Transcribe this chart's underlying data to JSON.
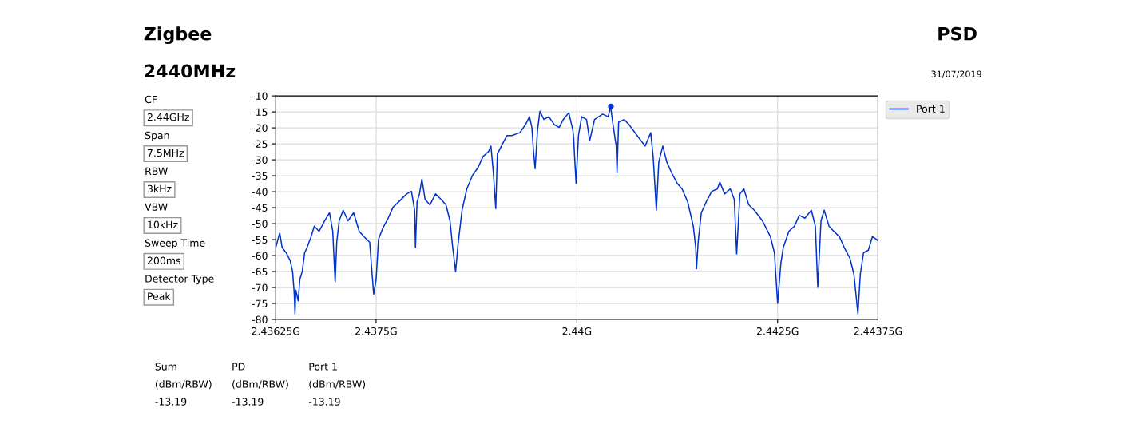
{
  "chart_data": {
    "type": "line",
    "title": "Zigbee",
    "subtitle": "2440MHz",
    "annotations": [
      "PSD",
      "31/07/2019",
      "CF",
      "2.44GHz",
      "Span",
      "7.5MHz",
      "RBW",
      "3kHz",
      "VBW",
      "10kHz",
      "Sweep Time",
      "200ms",
      "Detector Type",
      "Peak",
      "Sum",
      "PD",
      "Port 1",
      "(dBm/RBW)",
      "(dBm/RBW)",
      "(dBm/RBW)",
      "-13.19",
      "-13.19",
      "-13.19"
    ],
    "xlim": [
      2.43625,
      2.44375
    ],
    "xticks": [
      {
        "value": 2.43625,
        "label": "2.43625G"
      },
      {
        "value": 2.4375,
        "label": "2.4375G"
      },
      {
        "value": 2.44,
        "label": "2.44G"
      },
      {
        "value": 2.4425,
        "label": "2.4425G"
      },
      {
        "value": 2.44375,
        "label": "2.44375G"
      }
    ],
    "ylim": [
      -80,
      -10
    ],
    "yticks": [
      -10,
      -15,
      -20,
      -25,
      -30,
      -35,
      -40,
      -45,
      -50,
      -55,
      -60,
      -65,
      -70,
      -75,
      -80
    ],
    "grid": true,
    "legend": "top right",
    "series": [
      {
        "name": "Port 1",
        "color": "#0033cc",
        "marker": "none",
        "x": [
          2.43625,
          2.4363,
          2.43633,
          2.43638,
          2.43643,
          2.43646,
          2.43648,
          2.43649,
          2.4365,
          2.43653,
          2.43655,
          2.43658,
          2.43661,
          2.43664,
          2.43669,
          2.43673,
          2.43679,
          2.43686,
          2.43692,
          2.43696,
          2.43699,
          2.43701,
          2.43704,
          2.43709,
          2.43715,
          2.43722,
          2.43729,
          2.43735,
          2.43742,
          2.43745,
          2.43747,
          2.4375,
          2.43753,
          2.43758,
          2.43765,
          2.43771,
          2.43778,
          2.43788,
          2.43794,
          2.43798,
          2.43799,
          2.43801,
          2.43804,
          2.43807,
          2.43811,
          2.43817,
          2.43824,
          2.43831,
          2.43837,
          2.43842,
          2.43845,
          2.43849,
          2.43852,
          2.43857,
          2.43863,
          2.4387,
          2.43877,
          2.43883,
          2.4389,
          2.43893,
          2.43896,
          2.43899,
          2.43901,
          2.43906,
          2.43913,
          2.43919,
          2.43929,
          2.43936,
          2.43941,
          2.43944,
          2.43946,
          2.43948,
          2.43951,
          2.43954,
          2.43959,
          2.43965,
          2.43972,
          2.43978,
          2.43983,
          2.4399,
          2.43995,
          2.43996,
          2.43997,
          2.43999,
          2.44002,
          2.44006,
          2.44012,
          2.44016,
          2.44022,
          2.44032,
          2.44039,
          2.44042,
          2.44045,
          2.44049,
          2.4405,
          2.44052,
          2.44059,
          2.44065,
          2.44075,
          2.44085,
          2.44092,
          2.44095,
          2.44099,
          2.44102,
          2.44107,
          2.44112,
          2.44118,
          2.44125,
          2.44131,
          2.44138,
          2.44145,
          2.44148,
          2.44149,
          2.44151,
          2.44155,
          2.44161,
          2.44168,
          2.44175,
          2.44178,
          2.44184,
          2.44191,
          2.44196,
          2.44199,
          2.44203,
          2.44208,
          2.44214,
          2.44221,
          2.44231,
          2.44241,
          2.44246,
          2.4425,
          2.44254,
          2.44257,
          2.44264,
          2.44271,
          2.44277,
          2.44284,
          2.44292,
          2.44297,
          2.443,
          2.44304,
          2.44308,
          2.44314,
          2.4432,
          2.44327,
          2.44333,
          2.4434,
          2.44345,
          2.4435,
          2.44353,
          2.44357,
          2.44363,
          2.44368,
          2.44373,
          2.44375
        ],
        "values": [
          -57.5,
          -52.9,
          -57.5,
          -59.1,
          -61.6,
          -65.0,
          -71.7,
          -78.3,
          -70.8,
          -74.2,
          -67.5,
          -65.0,
          -59.1,
          -57.5,
          -54.1,
          -50.8,
          -52.4,
          -49.1,
          -46.6,
          -52.4,
          -68.3,
          -55.8,
          -49.1,
          -45.8,
          -49.1,
          -46.6,
          -52.4,
          -54.1,
          -55.8,
          -65.8,
          -72.1,
          -67.5,
          -54.9,
          -51.6,
          -48.3,
          -44.9,
          -43.2,
          -40.7,
          -39.9,
          -45.8,
          -57.5,
          -43.2,
          -40.7,
          -36.1,
          -42.4,
          -44.1,
          -40.7,
          -42.4,
          -44.1,
          -49.1,
          -56.6,
          -65.0,
          -56.6,
          -45.8,
          -39.1,
          -34.9,
          -32.4,
          -29.0,
          -27.4,
          -25.7,
          -34.1,
          -45.3,
          -28.2,
          -25.7,
          -22.4,
          -22.4,
          -21.5,
          -19.0,
          -16.5,
          -19.9,
          -27.4,
          -32.8,
          -20.7,
          -14.8,
          -17.4,
          -16.5,
          -19.0,
          -19.9,
          -17.4,
          -15.3,
          -20.7,
          -23.2,
          -28.2,
          -37.4,
          -22.4,
          -16.5,
          -17.4,
          -24.0,
          -17.4,
          -15.7,
          -16.5,
          -13.3,
          -19.0,
          -25.7,
          -34.1,
          -18.2,
          -17.4,
          -19.0,
          -22.4,
          -25.7,
          -21.5,
          -29.0,
          -45.8,
          -30.7,
          -25.7,
          -30.7,
          -34.1,
          -37.4,
          -39.1,
          -43.2,
          -50.8,
          -57.5,
          -64.1,
          -55.8,
          -46.6,
          -43.2,
          -39.9,
          -39.1,
          -37.0,
          -40.7,
          -39.1,
          -42.4,
          -59.5,
          -40.7,
          -39.1,
          -44.1,
          -45.8,
          -49.1,
          -54.1,
          -59.1,
          -75.0,
          -62.5,
          -57.5,
          -52.4,
          -50.8,
          -47.4,
          -48.3,
          -45.8,
          -50.8,
          -70.0,
          -49.1,
          -45.8,
          -50.8,
          -52.4,
          -54.1,
          -57.5,
          -60.8,
          -65.8,
          -78.3,
          -65.8,
          -59.1,
          -58.3,
          -54.1,
          -54.9,
          -55.4
        ]
      },
      {
        "type": "scatter",
        "color": "#0033cc",
        "marker": "circle",
        "x": [
          2.440424
        ],
        "values": [
          -13.3
        ]
      }
    ]
  }
}
